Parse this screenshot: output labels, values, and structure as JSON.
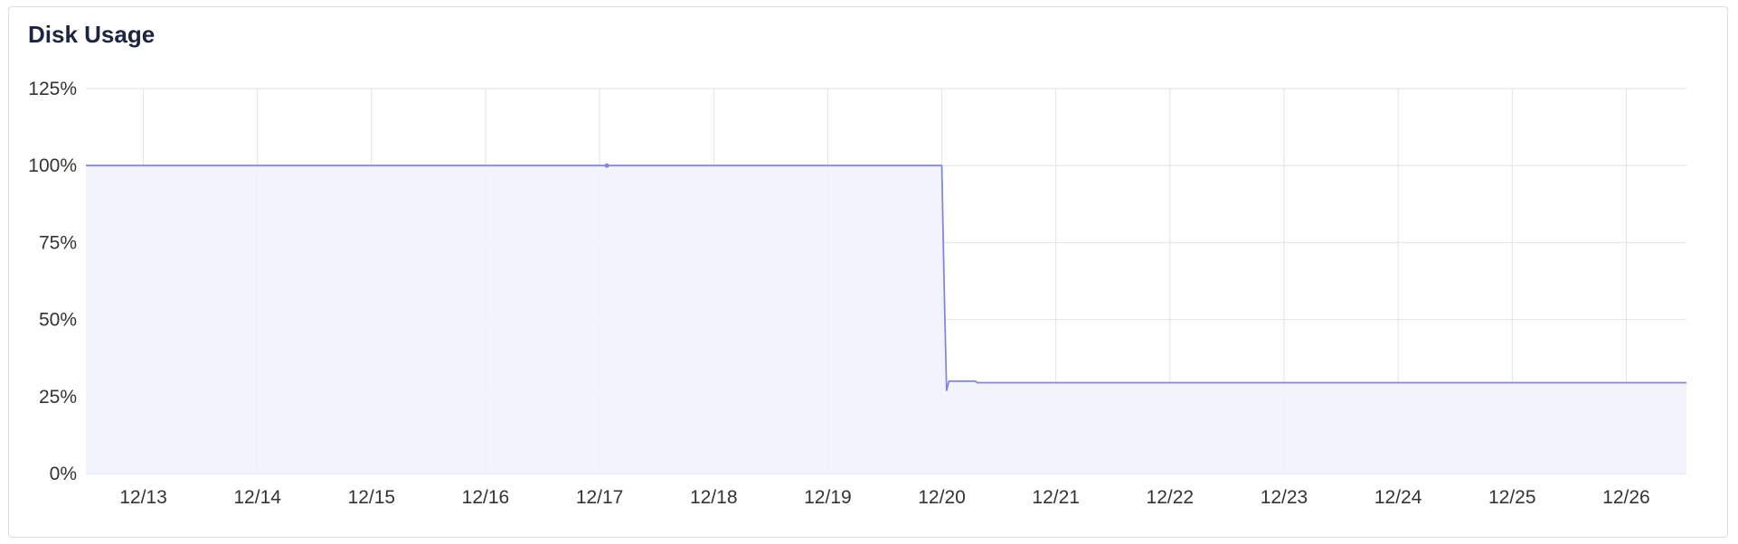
{
  "panel": {
    "title": "Disk Usage"
  },
  "colors": {
    "line": "#8388dd",
    "fill": "#f1f2fb",
    "grid": "#e2e2e8",
    "text": "#333333"
  },
  "chart_data": {
    "type": "area",
    "title": "Disk Usage",
    "xlabel": "",
    "ylabel": "",
    "x_unit": "date (December)",
    "ylim": [
      0,
      125
    ],
    "xlim": [
      "12/12 11:55",
      "12/26 12:40"
    ],
    "y_ticks": [
      "0%",
      "25%",
      "50%",
      "75%",
      "100%",
      "125%"
    ],
    "y_tick_values": [
      0,
      25,
      50,
      75,
      100,
      125
    ],
    "x_ticks": [
      "12/13",
      "12/14",
      "12/15",
      "12/16",
      "12/17",
      "12/18",
      "12/19",
      "12/20",
      "12/21",
      "12/22",
      "12/23",
      "12/24",
      "12/25",
      "12/26"
    ],
    "grid": true,
    "legend": "none",
    "series": [
      {
        "unit": "%",
        "points": [
          [
            "12/12 11:55",
            100
          ],
          [
            "12/17 00:00",
            100
          ],
          [
            "12/17 01:00",
            100
          ],
          [
            "12/20 00:00",
            100
          ],
          [
            "12/20 00:30",
            60
          ],
          [
            "12/20 01:00",
            27
          ],
          [
            "12/20 01:30",
            30
          ],
          [
            "12/20 07:00",
            30
          ],
          [
            "12/20 07:30",
            29.5
          ],
          [
            "12/26 12:40",
            29.5
          ]
        ]
      }
    ]
  }
}
